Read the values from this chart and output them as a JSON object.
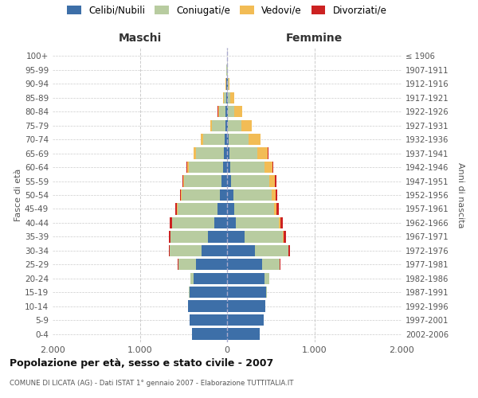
{
  "age_groups": [
    "0-4",
    "5-9",
    "10-14",
    "15-19",
    "20-24",
    "25-29",
    "30-34",
    "35-39",
    "40-44",
    "45-49",
    "50-54",
    "55-59",
    "60-64",
    "65-69",
    "70-74",
    "75-79",
    "80-84",
    "85-89",
    "90-94",
    "95-99",
    "100+"
  ],
  "birth_years": [
    "2002-2006",
    "1997-2001",
    "1992-1996",
    "1987-1991",
    "1982-1986",
    "1977-1981",
    "1972-1976",
    "1967-1971",
    "1962-1966",
    "1957-1961",
    "1952-1956",
    "1947-1951",
    "1942-1946",
    "1937-1941",
    "1932-1936",
    "1927-1931",
    "1922-1926",
    "1917-1921",
    "1912-1916",
    "1907-1911",
    "≤ 1906"
  ],
  "male_celibi": [
    400,
    430,
    450,
    430,
    380,
    360,
    290,
    220,
    150,
    110,
    80,
    60,
    50,
    40,
    30,
    20,
    15,
    10,
    5,
    3,
    2
  ],
  "male_coniugati": [
    0,
    0,
    2,
    5,
    40,
    200,
    370,
    430,
    480,
    460,
    440,
    430,
    390,
    320,
    240,
    150,
    80,
    30,
    8,
    2,
    0
  ],
  "male_vedovi": [
    0,
    0,
    0,
    0,
    0,
    1,
    1,
    2,
    3,
    5,
    8,
    10,
    15,
    20,
    30,
    20,
    10,
    5,
    2,
    0,
    0
  ],
  "male_divorziati": [
    0,
    0,
    0,
    0,
    2,
    5,
    10,
    15,
    20,
    15,
    10,
    10,
    10,
    8,
    5,
    5,
    2,
    0,
    0,
    0,
    0
  ],
  "female_celibi": [
    370,
    420,
    440,
    450,
    430,
    400,
    320,
    200,
    100,
    80,
    70,
    50,
    40,
    25,
    20,
    10,
    10,
    10,
    5,
    3,
    2
  ],
  "female_coniugati": [
    0,
    0,
    2,
    10,
    50,
    200,
    380,
    440,
    490,
    460,
    440,
    430,
    390,
    320,
    230,
    150,
    70,
    30,
    10,
    2,
    0
  ],
  "female_vedovi": [
    0,
    0,
    0,
    0,
    1,
    3,
    5,
    10,
    20,
    30,
    50,
    70,
    90,
    120,
    130,
    120,
    90,
    40,
    10,
    2,
    0
  ],
  "female_divorziati": [
    0,
    0,
    0,
    0,
    2,
    10,
    20,
    30,
    25,
    20,
    15,
    12,
    10,
    10,
    8,
    5,
    2,
    0,
    0,
    0,
    0
  ],
  "colors": {
    "celibi": "#3d6fa8",
    "coniugati": "#b8cca0",
    "vedovi": "#f2bc55",
    "divorziati": "#cc2222"
  },
  "title": "Popolazione per età, sesso e stato civile - 2007",
  "subtitle": "COMUNE DI LICATA (AG) - Dati ISTAT 1° gennaio 2007 - Elaborazione TUTTITALIA.IT",
  "xlabel_left": "Maschi",
  "xlabel_right": "Femmine",
  "ylabel_left": "Fasce di età",
  "ylabel_right": "Anni di nascita",
  "xlim": 2000,
  "xtick_labels": [
    "2.000",
    "1.000",
    "0",
    "1.000",
    "2.000"
  ],
  "bg_color": "#ffffff",
  "plot_bg": "#ffffff",
  "grid_color": "#cccccc"
}
